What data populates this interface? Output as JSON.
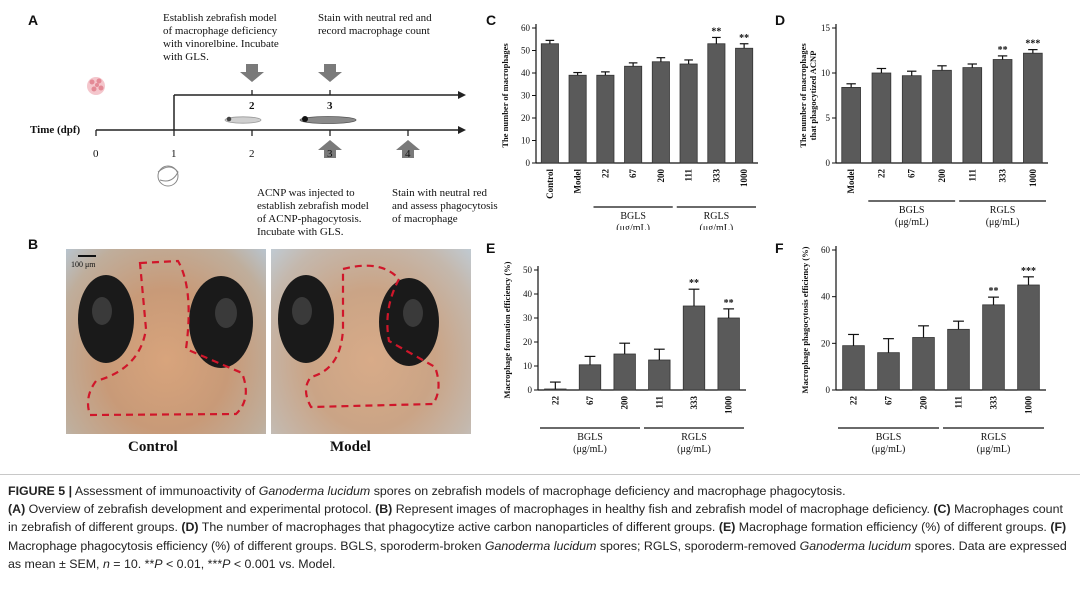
{
  "panels": {
    "a": {
      "label": "A",
      "axis_label": "Time (dpf)",
      "ticks": [
        "0",
        "1",
        "2",
        "3",
        "4"
      ],
      "upper_ticks": [
        "2",
        "3"
      ],
      "top_note_1": [
        "Establish zebrafish model",
        "of macrophage deficiency",
        "with vinorelbine. Incubate",
        "with GLS."
      ],
      "top_note_2": [
        "Stain with neutral red and",
        "record macrophage count"
      ],
      "bottom_note_1": [
        "ACNP was injected to",
        "establish zebrafish model",
        "of ACNP-phagocytosis.",
        "Incubate with GLS."
      ],
      "bottom_note_2": [
        "Stain with neutral red",
        "and assess phagocytosis",
        "of macrophage"
      ]
    },
    "b": {
      "label": "B",
      "scale_bar": "100 μm",
      "left_caption": "Control",
      "right_caption": "Model"
    }
  },
  "group_labels": {
    "bgls": "BGLS",
    "rgls": "RGLS",
    "unit": "(μg/mL)"
  },
  "chart_data": [
    {
      "id": "C",
      "type": "bar",
      "ylabel": "The number of macrophages",
      "categories": [
        "Control",
        "Model",
        "22",
        "67",
        "200",
        "111",
        "333",
        "1000"
      ],
      "values": [
        53,
        39,
        39,
        43,
        45,
        44,
        53,
        51
      ],
      "errors": [
        1.5,
        1.2,
        1.5,
        1.5,
        1.8,
        1.8,
        2.8,
        2
      ],
      "sig": [
        "",
        "",
        "",
        "",
        "",
        "",
        "**",
        "**"
      ],
      "ylim": [
        0,
        60
      ],
      "yticks": [
        "0",
        "10",
        "20",
        "30",
        "40",
        "50",
        "60"
      ]
    },
    {
      "id": "D",
      "type": "bar",
      "ylabel": "The number of macrophages that phagocytized ACNP",
      "categories": [
        "Model",
        "22",
        "67",
        "200",
        "111",
        "333",
        "1000"
      ],
      "values": [
        8.4,
        10,
        9.7,
        10.3,
        10.6,
        11.5,
        12.2
      ],
      "errors": [
        0.4,
        0.5,
        0.5,
        0.5,
        0.4,
        0.4,
        0.4
      ],
      "sig": [
        "",
        "",
        "",
        "",
        "",
        "**",
        "***"
      ],
      "ylim": [
        0,
        15
      ],
      "yticks": [
        "0",
        "5",
        "10",
        "15"
      ]
    },
    {
      "id": "E",
      "type": "bar",
      "ylabel": "Macrophage formation efficiency (%)",
      "categories": [
        "22",
        "67",
        "200",
        "111",
        "333",
        "1000"
      ],
      "values": [
        0.3,
        10.5,
        15,
        12.5,
        35,
        30
      ],
      "errors": [
        3,
        3.5,
        4.5,
        4.5,
        7,
        3.8
      ],
      "sig": [
        "",
        "",
        "",
        "",
        "**",
        "**"
      ],
      "ylim": [
        0,
        50
      ],
      "yticks": [
        "0",
        "10",
        "20",
        "30",
        "40",
        "50"
      ]
    },
    {
      "id": "F",
      "type": "bar",
      "ylabel": "Macrophage phagocytosis efficiency (%)",
      "categories": [
        "22",
        "67",
        "200",
        "111",
        "333",
        "1000"
      ],
      "values": [
        19,
        16,
        22.5,
        26,
        36.5,
        45
      ],
      "errors": [
        4.8,
        6,
        5,
        3.5,
        3.3,
        3.5
      ],
      "sig": [
        "",
        "",
        "",
        "",
        "**",
        "***"
      ],
      "ylim": [
        0,
        60
      ],
      "yticks": [
        "0",
        "20",
        "40",
        "60"
      ]
    }
  ],
  "caption": {
    "fig_label": "FIGURE 5 |",
    "title_a": "Assessment of immunoactivity of ",
    "title_em": "Ganoderma lucidum",
    "title_b": " spores on zebrafish models of macrophage deficiency and macrophage phagocytosis.",
    "a_tag": "(A)",
    "a_text": " Overview of zebrafish development and experimental protocol. ",
    "b_tag": "(B)",
    "b_text": " Represent images of macrophages in healthy fish and zebrafish model of macrophage deficiency. ",
    "c_tag": "(C)",
    "c_text": " Macrophages count in zebrafish of different groups. ",
    "d_tag": "(D)",
    "d_text": " The number of macrophages that phagocytize active carbon nanoparticles of different groups. ",
    "e_tag": "(E)",
    "e_text": " Macrophage formation efficiency (%) of different groups. ",
    "f_tag": "(F)",
    "f_text": " Macrophage phagocytosis efficiency (%) of different groups. BGLS, sporoderm-broken ",
    "em1": "Ganoderma lucidum",
    "mid1": " spores; RGLS, sporoderm-removed ",
    "em2": "Ganoderma lucidum",
    "mid2": " spores. Data are expressed as mean ± SEM, ",
    "n_em": "n",
    "n_rest": " = 10. **",
    "p1_em": "P",
    "p1_rest": " < 0.01, ***",
    "p2_em": "P",
    "p2_rest": " < 0.001 vs. Model."
  }
}
